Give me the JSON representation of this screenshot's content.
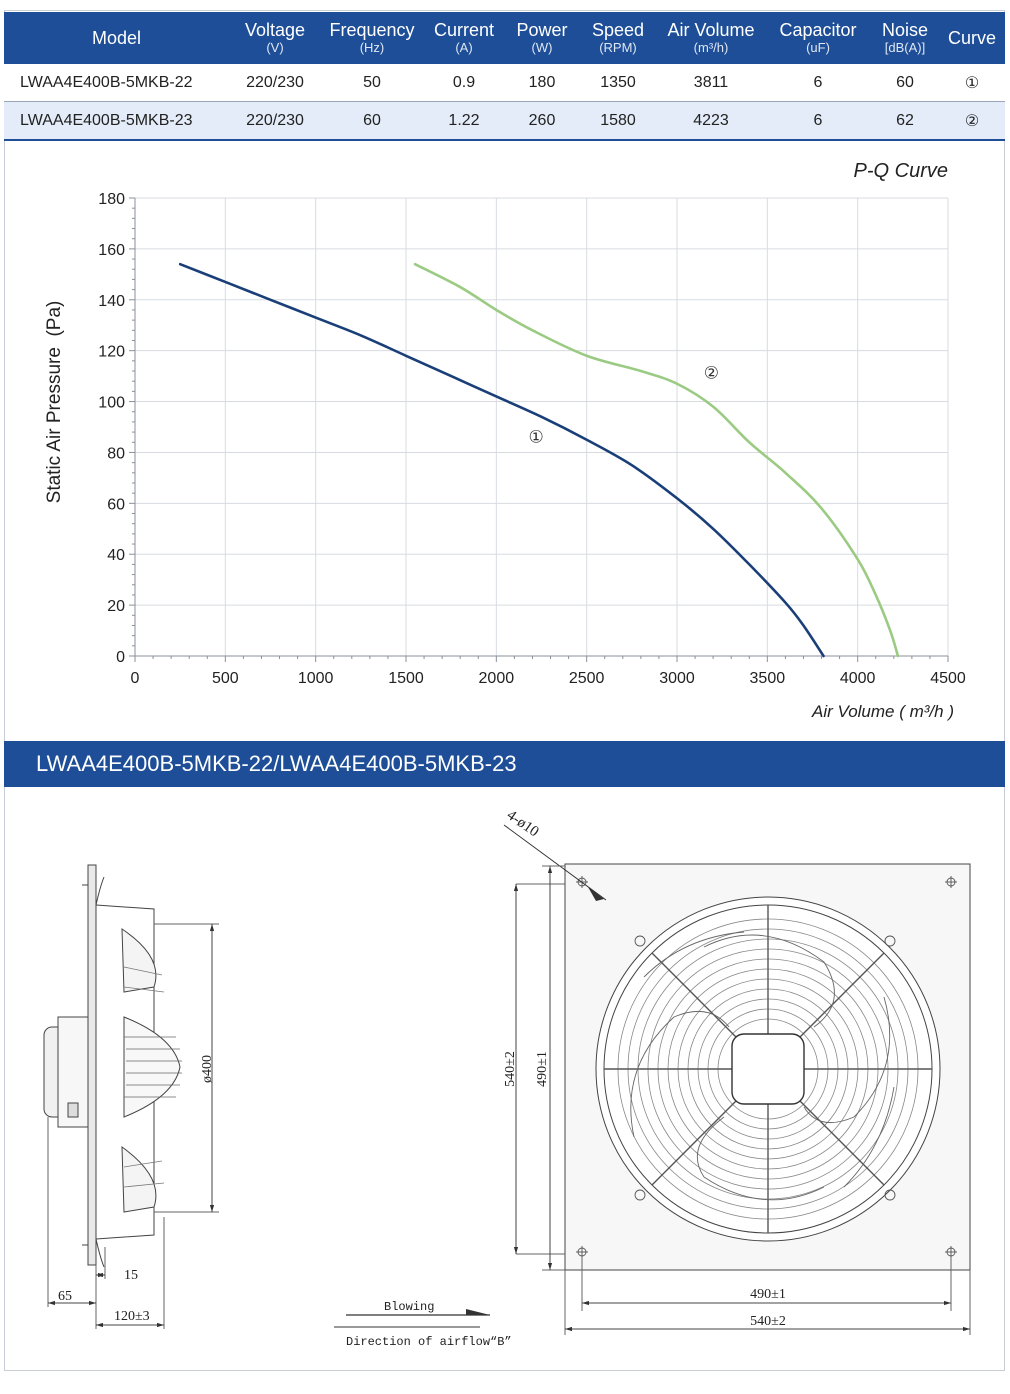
{
  "table": {
    "headers": [
      {
        "title": "Model",
        "unit": ""
      },
      {
        "title": "Voltage",
        "unit": "(V)"
      },
      {
        "title": "Frequency",
        "unit": "(Hz)"
      },
      {
        "title": "Current",
        "unit": "(A)"
      },
      {
        "title": "Power",
        "unit": "(W)"
      },
      {
        "title": "Speed",
        "unit": "(RPM)"
      },
      {
        "title": "Air Volume",
        "unit": "(m³/h)"
      },
      {
        "title": "Capacitor",
        "unit": "(uF)"
      },
      {
        "title": "Noise",
        "unit": "[dB(A)]"
      },
      {
        "title": "Curve",
        "unit": ""
      }
    ],
    "rows": [
      [
        "LWAA4E400B-5MKB-22",
        "220/230",
        "50",
        "0.9",
        "180",
        "1350",
        "3811",
        "6",
        "60",
        "①"
      ],
      [
        "LWAA4E400B-5MKB-23",
        "220/230",
        "60",
        "1.22",
        "260",
        "1580",
        "4223",
        "6",
        "62",
        "②"
      ]
    ]
  },
  "chart_data": {
    "type": "line",
    "title": "P-Q Curve",
    "xlabel": "Air Volume ( m³/h )",
    "ylabel": "Static Air Pressure  (Pa)",
    "xlim": [
      0,
      4500
    ],
    "ylim": [
      0,
      180
    ],
    "xticks": [
      0,
      500,
      1000,
      1500,
      2000,
      2500,
      3000,
      3500,
      4000,
      4500
    ],
    "yticks": [
      0,
      20,
      40,
      60,
      80,
      100,
      120,
      140,
      160,
      180
    ],
    "grid": true,
    "series": [
      {
        "name": "①",
        "color": "#1a3f78",
        "x": [
          250,
          500,
          750,
          1000,
          1250,
          1500,
          1750,
          2000,
          2250,
          2500,
          2750,
          3000,
          3200,
          3400,
          3600,
          3700,
          3811
        ],
        "y": [
          154,
          147,
          140,
          133,
          126,
          118,
          110,
          102,
          94,
          85,
          75,
          62,
          50,
          36,
          21,
          12,
          0
        ]
      },
      {
        "name": "②",
        "color": "#9bcb83",
        "x": [
          1550,
          1800,
          2000,
          2200,
          2500,
          2800,
          3000,
          3200,
          3400,
          3600,
          3800,
          4000,
          4100,
          4180,
          4223
        ],
        "y": [
          154,
          145,
          136,
          128,
          118,
          112,
          107,
          98,
          84,
          72,
          58,
          38,
          24,
          10,
          0
        ]
      }
    ],
    "annotations": [
      {
        "text": "①",
        "x": 2220,
        "y": 84
      },
      {
        "text": "②",
        "x": 3190,
        "y": 109
      }
    ]
  },
  "section_title": "LWAA4E400B-5MKB-22/LWAA4E400B-5MKB-23",
  "drawing": {
    "dims": {
      "d400": "ø400",
      "d15": "15",
      "d65": "65",
      "d120": "120±3",
      "holes": "4-ø10",
      "v540": "540±2",
      "v490": "490±1",
      "h490": "490±1",
      "h540": "540±2"
    },
    "blowing": "Blowing",
    "airflow": "Direction of airflow“B”"
  }
}
